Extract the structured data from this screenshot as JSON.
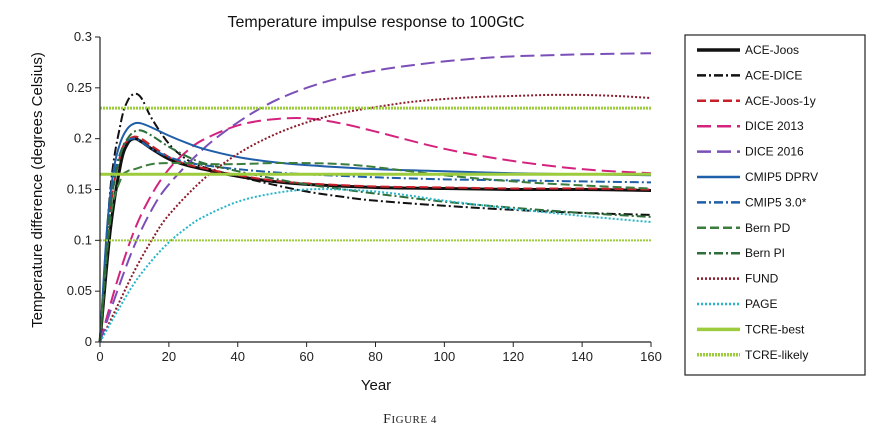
{
  "chart_data": {
    "type": "line",
    "title": "Temperature impulse response to 100GtC",
    "xlabel": "Year",
    "ylabel": "Temperature difference (degrees Celsius)",
    "caption": "Figure 4",
    "xlim": [
      0,
      160
    ],
    "ylim": [
      0,
      0.3
    ],
    "xticks": [
      0,
      20,
      40,
      60,
      80,
      100,
      120,
      140,
      160
    ],
    "yticks": [
      0,
      0.05,
      0.1,
      0.15,
      0.2,
      0.25,
      0.3
    ],
    "ytick_labels": [
      "0",
      "0.05",
      "0.1",
      "0.15",
      "0.2",
      "0.25",
      "0.3"
    ],
    "grid": false,
    "legend_position": "right-outside",
    "series": [
      {
        "name": "ACE-Joos",
        "color": "#111111",
        "dash": "solid",
        "width": 3,
        "x": [
          0,
          3,
          6,
          8,
          10,
          12,
          15,
          20,
          25,
          30,
          40,
          50,
          60,
          80,
          100,
          120,
          140,
          160
        ],
        "y": [
          0,
          0.11,
          0.175,
          0.195,
          0.2,
          0.197,
          0.19,
          0.18,
          0.174,
          0.17,
          0.163,
          0.158,
          0.155,
          0.152,
          0.151,
          0.15,
          0.15,
          0.149
        ]
      },
      {
        "name": "ACE-DICE",
        "color": "#111111",
        "dash": "dashdot",
        "width": 2,
        "x": [
          0,
          3,
          6,
          8,
          10,
          12,
          15,
          20,
          25,
          30,
          40,
          50,
          60,
          70,
          80,
          100,
          120,
          140,
          160
        ],
        "y": [
          0,
          0.15,
          0.215,
          0.237,
          0.244,
          0.24,
          0.22,
          0.195,
          0.18,
          0.172,
          0.163,
          0.155,
          0.148,
          0.143,
          0.139,
          0.134,
          0.13,
          0.127,
          0.125
        ]
      },
      {
        "name": "ACE-Joos-1y",
        "color": "#c8202a",
        "dash": "dashed",
        "width": 2,
        "x": [
          0,
          3,
          6,
          8,
          10,
          12,
          15,
          20,
          25,
          30,
          40,
          50,
          60,
          80,
          100,
          120,
          140,
          160
        ],
        "y": [
          0,
          0.13,
          0.185,
          0.198,
          0.202,
          0.2,
          0.193,
          0.182,
          0.175,
          0.171,
          0.164,
          0.159,
          0.156,
          0.153,
          0.152,
          0.151,
          0.151,
          0.15
        ]
      },
      {
        "name": "DICE 2013",
        "color": "#d4237e",
        "dash": "longdash",
        "width": 2,
        "x": [
          0,
          5,
          10,
          15,
          20,
          25,
          30,
          40,
          50,
          60,
          70,
          80,
          100,
          120,
          140,
          160
        ],
        "y": [
          0,
          0.06,
          0.11,
          0.145,
          0.17,
          0.187,
          0.199,
          0.213,
          0.219,
          0.22,
          0.215,
          0.207,
          0.19,
          0.178,
          0.17,
          0.166
        ]
      },
      {
        "name": "DICE 2016",
        "color": "#7b4fb8",
        "dash": "longdash",
        "width": 2,
        "x": [
          0,
          5,
          10,
          15,
          20,
          30,
          40,
          50,
          60,
          70,
          80,
          90,
          100,
          110,
          120,
          130,
          140,
          160
        ],
        "y": [
          0,
          0.05,
          0.095,
          0.13,
          0.155,
          0.19,
          0.216,
          0.236,
          0.25,
          0.26,
          0.267,
          0.272,
          0.276,
          0.279,
          0.281,
          0.282,
          0.283,
          0.284
        ]
      },
      {
        "name": "CMIP5 DPRV",
        "color": "#1f5ea8",
        "dash": "solid",
        "width": 2,
        "x": [
          0,
          2,
          4,
          6,
          8,
          10,
          12,
          15,
          20,
          25,
          30,
          40,
          50,
          60,
          80,
          100,
          120,
          140,
          160
        ],
        "y": [
          0,
          0.11,
          0.17,
          0.197,
          0.21,
          0.215,
          0.215,
          0.211,
          0.203,
          0.196,
          0.19,
          0.182,
          0.177,
          0.174,
          0.17,
          0.168,
          0.166,
          0.165,
          0.164
        ]
      },
      {
        "name": "CMIP5 3.0*",
        "color": "#1f5ea8",
        "dash": "dashdot",
        "width": 2,
        "x": [
          0,
          2,
          4,
          6,
          8,
          10,
          12,
          15,
          20,
          25,
          30,
          40,
          50,
          60,
          80,
          100,
          120,
          140,
          160
        ],
        "y": [
          0,
          0.1,
          0.16,
          0.187,
          0.198,
          0.2,
          0.197,
          0.19,
          0.182,
          0.177,
          0.174,
          0.17,
          0.167,
          0.165,
          0.162,
          0.16,
          0.159,
          0.158,
          0.157
        ]
      },
      {
        "name": "Bern PD",
        "color": "#3b7d3c",
        "dash": "dashed",
        "width": 2,
        "x": [
          0,
          3,
          6,
          8,
          10,
          15,
          20,
          25,
          30,
          40,
          50,
          60,
          70,
          80,
          100,
          120,
          140,
          160
        ],
        "y": [
          0,
          0.12,
          0.16,
          0.168,
          0.17,
          0.175,
          0.176,
          0.176,
          0.175,
          0.175,
          0.176,
          0.176,
          0.175,
          0.172,
          0.164,
          0.158,
          0.154,
          0.151
        ]
      },
      {
        "name": "Bern PI",
        "color": "#2d6e3a",
        "dash": "dashdot",
        "width": 2,
        "x": [
          0,
          3,
          6,
          8,
          10,
          12,
          15,
          20,
          25,
          30,
          40,
          50,
          60,
          80,
          100,
          120,
          140,
          160
        ],
        "y": [
          0,
          0.13,
          0.185,
          0.2,
          0.207,
          0.208,
          0.203,
          0.192,
          0.183,
          0.176,
          0.168,
          0.161,
          0.155,
          0.146,
          0.138,
          0.132,
          0.127,
          0.123
        ]
      },
      {
        "name": "FUND",
        "color": "#8b1a2a",
        "dash": "dotted",
        "width": 2,
        "x": [
          0,
          5,
          10,
          15,
          20,
          30,
          40,
          50,
          60,
          70,
          80,
          90,
          100,
          110,
          120,
          130,
          140,
          150,
          160
        ],
        "y": [
          0,
          0.035,
          0.07,
          0.1,
          0.125,
          0.16,
          0.185,
          0.203,
          0.216,
          0.225,
          0.231,
          0.236,
          0.239,
          0.241,
          0.242,
          0.243,
          0.243,
          0.242,
          0.24
        ]
      },
      {
        "name": "PAGE",
        "color": "#27b6c8",
        "dash": "dotted",
        "width": 2,
        "x": [
          0,
          5,
          10,
          15,
          20,
          25,
          30,
          40,
          50,
          60,
          70,
          80,
          90,
          100,
          120,
          140,
          160
        ],
        "y": [
          0,
          0.03,
          0.058,
          0.08,
          0.098,
          0.112,
          0.123,
          0.138,
          0.146,
          0.15,
          0.15,
          0.148,
          0.144,
          0.139,
          0.131,
          0.124,
          0.118
        ]
      },
      {
        "name": "TCRE-best",
        "color": "#9ccc3c",
        "dash": "solid",
        "width": 3,
        "x": [
          0,
          160
        ],
        "y": [
          0.165,
          0.165
        ]
      },
      {
        "name": "TCRE-likely",
        "color": "#9ccc3c",
        "dash": "densedot",
        "width": 3,
        "x": [
          0,
          160
        ],
        "y": [
          0.23,
          0.23
        ]
      },
      {
        "name": "",
        "color": "#9ccc3c",
        "dash": "densedot",
        "width": 2,
        "x": [
          0,
          160
        ],
        "y": [
          0.1,
          0.1
        ]
      }
    ]
  }
}
